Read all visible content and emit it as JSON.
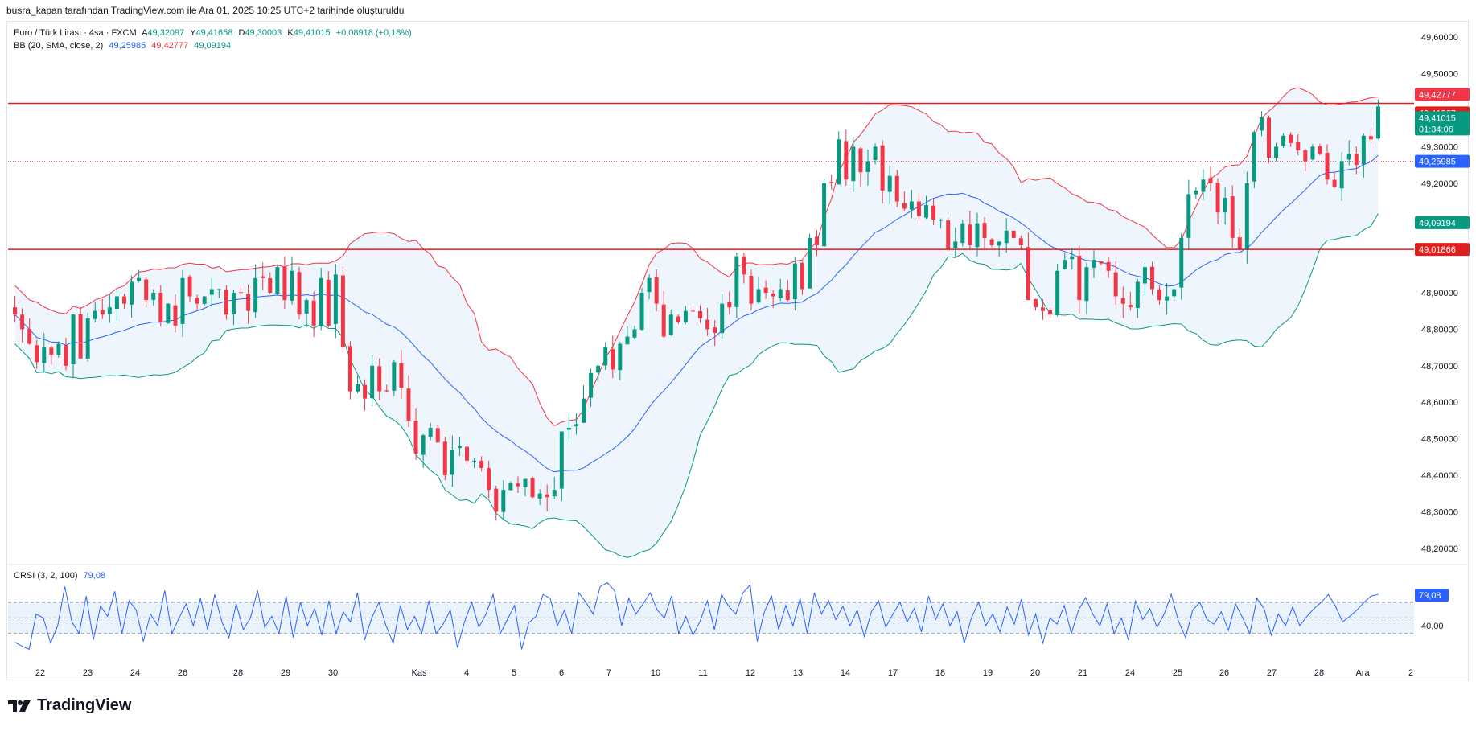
{
  "header": {
    "note": "busra_kapan tarafından TradingView.com ile Ara 01, 2025 10:25 UTC+2 tarihinde oluşturuldu"
  },
  "legend": {
    "symbol": "Euro / Türk Lirası · 4sa · FXCM",
    "o_label": "A",
    "o": "49,32097",
    "h_label": "Y",
    "h": "49,41658",
    "l_label": "D",
    "l": "49,30003",
    "c_label": "K",
    "c": "49,41015",
    "change": "+0,08918 (+0,18%)",
    "bb_name": "BB (20, SMA, close, 2)",
    "bb_mid": "49,25985",
    "bb_up": "49,42777",
    "bb_low": "49,09194",
    "crsi_name": "CRSI (3, 2, 100)",
    "crsi_val": "79,08"
  },
  "colors": {
    "up": "#089981",
    "down": "#f23645",
    "bb_mid": "#2962ff",
    "bb_up": "#f23645",
    "bb_low": "#089981",
    "bb_fill": "#eaf2fb",
    "crsi": "#2962ff",
    "hline": "#e01e1e"
  },
  "price_tags": [
    {
      "label": "49,42777",
      "value": 49.42777,
      "color": "#f23645"
    },
    {
      "label": "49,41867",
      "value": 49.41867,
      "color": "#e01e1e"
    },
    {
      "label": "49,41015",
      "value": 49.41015,
      "color": "#089981",
      "sub": "01:34:06"
    },
    {
      "label": "49,25985",
      "value": 49.25985,
      "color": "#2962ff"
    },
    {
      "label": "49,09194",
      "value": 49.09194,
      "color": "#089981"
    },
    {
      "label": "49,01866",
      "value": 49.01866,
      "color": "#e01e1e"
    }
  ],
  "crsi_tag": {
    "label": "79,08",
    "value": 79.08,
    "color": "#2962ff"
  },
  "crsi_axis_label": "40,00",
  "logo_text": "TradingView",
  "chart_data": {
    "type": "candlestick",
    "ylim": [
      48.16,
      49.64
    ],
    "y_ticks": [
      49.6,
      49.5,
      49.3,
      49.2,
      48.9,
      48.8,
      48.7,
      48.6,
      48.5,
      48.4,
      48.3,
      48.2
    ],
    "y_tick_labels": [
      "49,60000",
      "49,50000",
      "49,30000",
      "49,20000",
      "48,90000",
      "48,80000",
      "48,70000",
      "48,60000",
      "48,50000",
      "48,40000",
      "48,30000",
      "48,20000"
    ],
    "x_labels": [
      "22",
      "23",
      "24",
      "26",
      "28",
      "29",
      "30",
      "Kas",
      "4",
      "5",
      "6",
      "7",
      "10",
      "11",
      "12",
      "13",
      "14",
      "17",
      "18",
      "19",
      "20",
      "21",
      "24",
      "25",
      "26",
      "27",
      "28",
      "Ara",
      "2"
    ],
    "horizontal_lines": [
      49.41867,
      49.01866
    ],
    "dotted_lines": [
      49.25985
    ],
    "close": [
      48.84,
      48.8,
      48.76,
      48.71,
      48.75,
      48.73,
      48.76,
      48.7,
      48.84,
      48.72,
      48.83,
      48.85,
      48.84,
      48.86,
      48.89,
      48.87,
      48.93,
      48.94,
      48.88,
      48.9,
      48.82,
      48.87,
      48.81,
      48.94,
      48.89,
      48.87,
      48.89,
      48.91,
      48.91,
      48.84,
      48.9,
      48.9,
      48.85,
      48.94,
      48.94,
      48.9,
      48.97,
      48.88,
      48.96,
      48.84,
      48.88,
      48.81,
      48.94,
      48.81,
      48.95,
      48.75,
      48.63,
      48.65,
      48.61,
      48.7,
      48.63,
      48.63,
      48.71,
      48.64,
      48.55,
      48.46,
      48.51,
      48.53,
      48.49,
      48.4,
      48.47,
      48.48,
      48.44,
      48.44,
      48.42,
      48.36,
      48.3,
      48.36,
      48.38,
      48.37,
      48.39,
      48.34,
      48.35,
      48.34,
      48.36,
      48.52,
      48.53,
      48.54,
      48.61,
      48.68,
      48.7,
      48.75,
      48.69,
      48.76,
      48.78,
      48.8,
      48.9,
      48.94,
      48.87,
      48.78,
      48.84,
      48.82,
      48.85,
      48.85,
      48.83,
      48.8,
      48.79,
      48.87,
      48.86,
      49.0,
      48.95,
      48.87,
      48.91,
      48.9,
      48.89,
      48.91,
      48.88,
      48.98,
      48.91,
      49.05,
      49.03,
      49.2,
      49.2,
      49.32,
      49.21,
      49.3,
      49.23,
      49.26,
      49.3,
      49.18,
      49.22,
      49.15,
      49.13,
      49.15,
      49.11,
      49.14,
      49.1,
      49.1,
      49.02,
      49.04,
      49.09,
      49.03,
      49.09,
      49.05,
      49.03,
      49.04,
      49.07,
      49.05,
      49.03,
      48.88,
      48.86,
      48.85,
      48.84,
      48.96,
      48.99,
      49.0,
      48.88,
      48.97,
      48.99,
      48.98,
      48.96,
      48.89,
      48.87,
      48.86,
      48.93,
      48.97,
      48.91,
      48.88,
      48.89,
      48.91,
      49.05,
      49.17,
      49.18,
      49.21,
      49.2,
      49.12,
      49.16,
      49.05,
      49.02,
      49.2,
      49.34,
      49.38,
      49.27,
      49.3,
      49.33,
      49.31,
      49.29,
      49.26,
      49.3,
      49.28,
      49.21,
      49.19,
      49.26,
      49.28,
      49.25,
      49.33,
      49.32,
      49.41
    ],
    "crsi": [
      19,
      14,
      10,
      55,
      50,
      18,
      40,
      90,
      45,
      30,
      78,
      22,
      65,
      52,
      84,
      30,
      72,
      60,
      20,
      55,
      40,
      85,
      30,
      50,
      68,
      40,
      75,
      35,
      80,
      45,
      25,
      68,
      35,
      50,
      85,
      38,
      52,
      30,
      78,
      25,
      70,
      40,
      62,
      28,
      72,
      30,
      58,
      45,
      82,
      22,
      50,
      70,
      40,
      18,
      66,
      35,
      52,
      30,
      72,
      30,
      42,
      60,
      12,
      45,
      70,
      38,
      55,
      80,
      30,
      48,
      66,
      10,
      44,
      52,
      80,
      75,
      40,
      60,
      30,
      82,
      70,
      55,
      90,
      95,
      85,
      40,
      75,
      55,
      68,
      82,
      60,
      50,
      78,
      30,
      52,
      28,
      46,
      72,
      35,
      80,
      65,
      55,
      82,
      92,
      20,
      58,
      78,
      35,
      66,
      40,
      75,
      30,
      82,
      55,
      72,
      48,
      65,
      40,
      60,
      26,
      58,
      72,
      38,
      55,
      70,
      45,
      62,
      32,
      78,
      48,
      68,
      40,
      58,
      18,
      50,
      70,
      40,
      55,
      32,
      64,
      42,
      74,
      28,
      55,
      18,
      50,
      42,
      66,
      30,
      60,
      76,
      55,
      40,
      68,
      30,
      50,
      22,
      72,
      48,
      62,
      38,
      55,
      80,
      46,
      25,
      60,
      70,
      48,
      42,
      58,
      34,
      68,
      50,
      30,
      75,
      62,
      28,
      55,
      40,
      64,
      40,
      52,
      62,
      70,
      80,
      65,
      45,
      52,
      60,
      70,
      78,
      80
    ],
    "crsi_ylim": [
      -5,
      112
    ],
    "crsi_band": [
      30,
      70
    ],
    "crsi_mid": 50
  }
}
